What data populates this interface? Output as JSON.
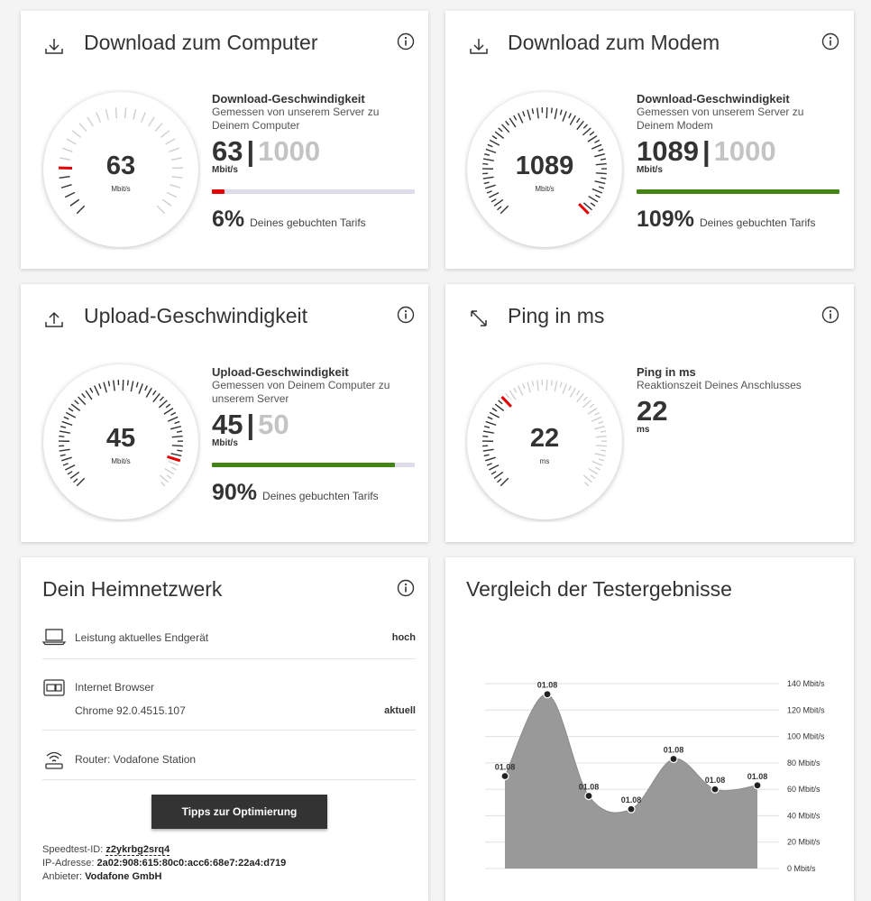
{
  "cards": {
    "download_computer": {
      "title": "Download zum Computer",
      "icon": "download-icon",
      "gauge_value": "63",
      "gauge_unit": "Mbit/s",
      "stat_title": "Download-Geschwindigkeit",
      "stat_desc": "Gemessen von unserem Server zu Deinem Computer",
      "measured": "63",
      "separator": "|",
      "booked": "1000",
      "unit": "Mbit/s",
      "percent": "6%",
      "percent_label": "Deines gebuchten Tarifs",
      "fraction": 0.063,
      "bar_color": "#e60000"
    },
    "download_modem": {
      "title": "Download zum Modem",
      "icon": "download-icon",
      "gauge_value": "1089",
      "gauge_unit": "Mbit/s",
      "stat_title": "Download-Geschwindigkeit",
      "stat_desc": "Gemessen von unserem Server zu Deinem Modem",
      "measured": "1089",
      "separator": "|",
      "booked": "1000",
      "unit": "Mbit/s",
      "percent": "109%",
      "percent_label": "Deines gebuchten Tarifs",
      "fraction": 1.0,
      "bar_color": "#428513"
    },
    "upload": {
      "title": "Upload-Geschwindigkeit",
      "icon": "upload-icon",
      "gauge_value": "45",
      "gauge_unit": "Mbit/s",
      "stat_title": "Upload-Geschwindigkeit",
      "stat_desc": "Gemessen von Deinem Computer zu unserem Server",
      "measured": "45",
      "separator": "|",
      "booked": "50",
      "unit": "Mbit/s",
      "percent": "90%",
      "percent_label": "Deines gebuchten Tarifs",
      "fraction": 0.9,
      "bar_color": "#428513"
    },
    "ping": {
      "title": "Ping in ms",
      "icon": "expand-arrows-icon",
      "gauge_value": "22",
      "gauge_unit": "ms",
      "stat_title": "Ping in ms",
      "stat_desc": "Reaktionszeit Deines Anschlusses",
      "measured": "22",
      "unit": "ms"
    }
  },
  "gauges": {
    "download_computer": {
      "ticks": 30,
      "active_until": 5,
      "indicator": 5
    },
    "download_modem": {
      "ticks": 60,
      "active_until": 60,
      "indicator": 59
    },
    "upload": {
      "ticks": 60,
      "active_until": 53,
      "indicator": 53
    },
    "ping": {
      "ticks": 60,
      "active_until": 21,
      "indicator": 20
    }
  },
  "network": {
    "title": "Dein Heimnetzwerk",
    "device_label": "Leistung aktuelles Endgerät",
    "device_value": "hoch",
    "browser_label": "Internet Browser",
    "browser_version": "Chrome 92.0.4515.107",
    "browser_value": "aktuell",
    "router_label": "Router: Vodafone Station",
    "button_label": "Tipps zur Optimierung",
    "speedtest_id_label": "Speedtest-ID:",
    "speedtest_id": "z2ykrbg2srq4",
    "ip_label": "IP-Adresse:",
    "ip": "2a02:908:615:80c0:acc6:68e7:22a4:d719",
    "provider_label": "Anbieter:",
    "provider": "Vodafone GmbH"
  },
  "comparison": {
    "title": "Vergleich der Testergebnisse"
  },
  "chart_data": {
    "type": "area",
    "x": [
      "01.08",
      "01.08",
      "01.08",
      "01.08",
      "01.08",
      "01.08",
      "01.08"
    ],
    "values": [
      70,
      132,
      55,
      45,
      83,
      60,
      63
    ],
    "point_labels": [
      "01.08",
      "01.08",
      "01.08",
      "01.08",
      "01.08",
      "01.08",
      "01.08"
    ],
    "ylim": [
      0,
      140
    ],
    "yticks": [
      "0 Mbit/s",
      "20 Mbit/s",
      "40 Mbit/s",
      "60 Mbit/s",
      "80 Mbit/s",
      "100 Mbit/s",
      "120 Mbit/s",
      "140 Mbit/s"
    ],
    "yaxis_side": "right",
    "grid": true,
    "fill_color": "#999999"
  },
  "colors": {
    "red": "#e60000",
    "green": "#428513",
    "tick": "#333333",
    "tick_inactive": "#cfcfcf"
  }
}
